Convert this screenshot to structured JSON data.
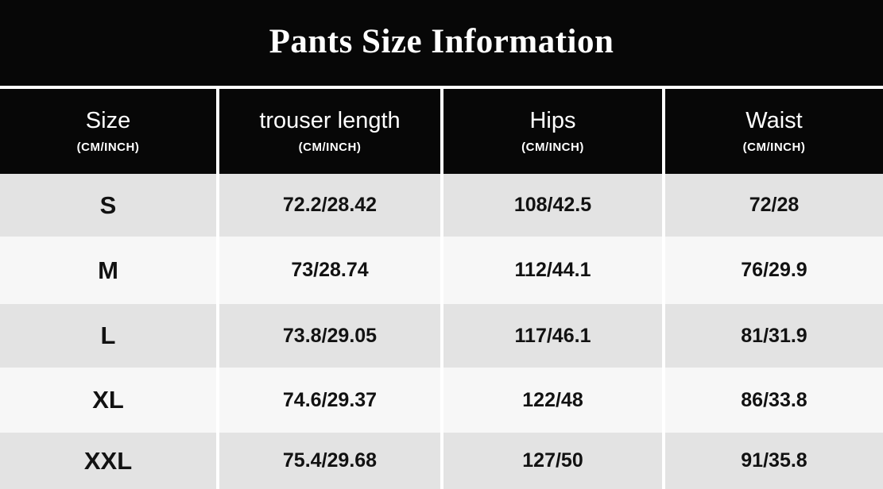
{
  "title": "Pants Size Information",
  "table": {
    "columns": [
      {
        "label": "Size",
        "unit": "(CM/INCH)"
      },
      {
        "label": "trouser length",
        "unit": "(CM/INCH)"
      },
      {
        "label": "Hips",
        "unit": "(CM/INCH)"
      },
      {
        "label": "Waist",
        "unit": "(CM/INCH)"
      }
    ],
    "rows": [
      {
        "size": "S",
        "trouser_length": "72.2/28.42",
        "hips": "108/42.5",
        "waist": "72/28"
      },
      {
        "size": "M",
        "trouser_length": "73/28.74",
        "hips": "112/44.1",
        "waist": "76/29.9"
      },
      {
        "size": "L",
        "trouser_length": "73.8/29.05",
        "hips": "117/46.1",
        "waist": "81/31.9"
      },
      {
        "size": "XL",
        "trouser_length": "74.6/29.37",
        "hips": "122/48",
        "waist": "86/33.8"
      },
      {
        "size": "XXL",
        "trouser_length": "75.4/29.68",
        "hips": "127/50",
        "waist": "91/35.8"
      }
    ]
  },
  "colors": {
    "banner_black": "#070707",
    "row_gray": "#e3e3e3",
    "row_white": "#f7f7f7",
    "separator": "#ffffff",
    "header_text": "#ffffff",
    "body_text": "#121212"
  }
}
